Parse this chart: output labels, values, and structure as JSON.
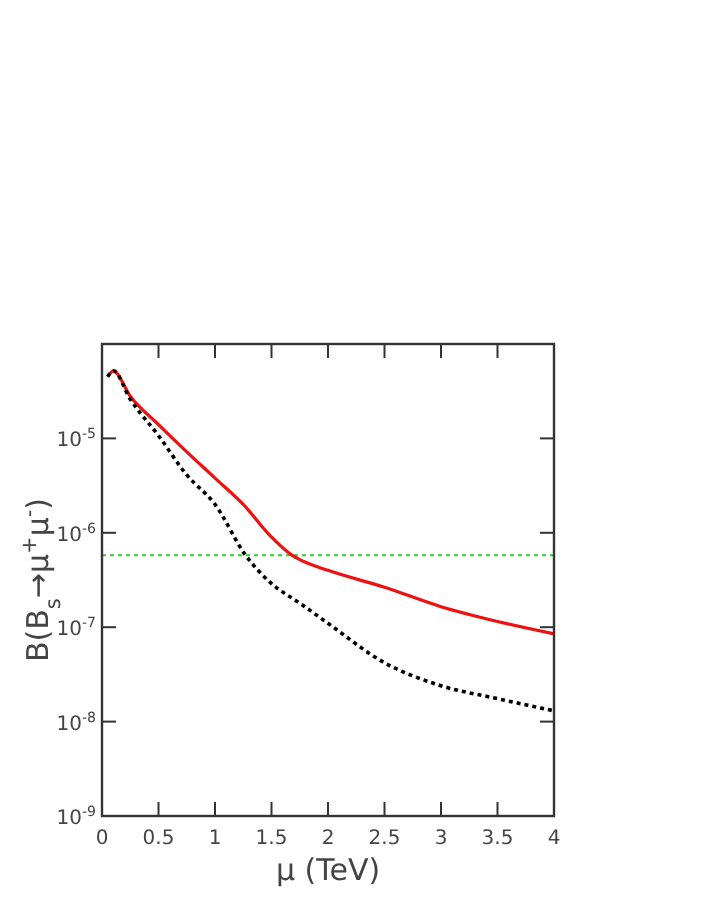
{
  "chart_data": {
    "type": "line",
    "xlabel": "μ (TeV)",
    "ylabel": "B(B$_{s}$→μ$^{+}$μ$^{-}$)",
    "log": "y",
    "xlim": [
      0,
      4
    ],
    "xticks": [
      0,
      0.5,
      1,
      1.5,
      2,
      2.5,
      3,
      3.5,
      4
    ],
    "ylim": [
      1e-09,
      0.0001
    ],
    "yticks": [
      {
        "value": 1e-09,
        "label": "10$^{-9}$"
      },
      {
        "value": 1e-08,
        "label": "10$^{-8}$"
      },
      {
        "value": 1e-07,
        "label": "10$^{-7}$"
      },
      {
        "value": 1e-06,
        "label": "10$^{-6}$"
      },
      {
        "value": 1e-05,
        "label": "10$^{-5}$"
      }
    ],
    "grid": false,
    "ref_lines": [
      {
        "axis": "y",
        "value": 5.8e-07,
        "color": "#33cc33",
        "line_style": "dotted"
      }
    ],
    "series": [
      {
        "color": "#ee1111",
        "line_style": "solid",
        "x": [
          0.05,
          0.1,
          0.25,
          0.5,
          0.75,
          1,
          1.25,
          1.5,
          1.68,
          1.75,
          2,
          2.5,
          3,
          3.5,
          4
        ],
        "values": [
          4.5e-05,
          5.2e-05,
          2.8e-05,
          1.4e-05,
          7.2e-06,
          3.8e-06,
          2e-06,
          9e-07,
          5.8e-07,
          5.2e-07,
          4e-07,
          2.65e-07,
          1.65e-07,
          1.15e-07,
          8.5e-08
        ]
      },
      {
        "color": "#000000",
        "line_style": "dotted",
        "x": [
          0.05,
          0.1,
          0.25,
          0.5,
          0.75,
          1,
          1.27,
          1.5,
          1.75,
          2,
          2.5,
          3,
          3.5,
          4
        ],
        "values": [
          4.5e-05,
          5.2e-05,
          2.6e-05,
          1.07e-05,
          4.1e-06,
          2e-06,
          5.8e-07,
          2.9e-07,
          1.8e-07,
          1.1e-07,
          4.2e-08,
          2.4e-08,
          1.75e-08,
          1.3e-08
        ]
      }
    ]
  }
}
